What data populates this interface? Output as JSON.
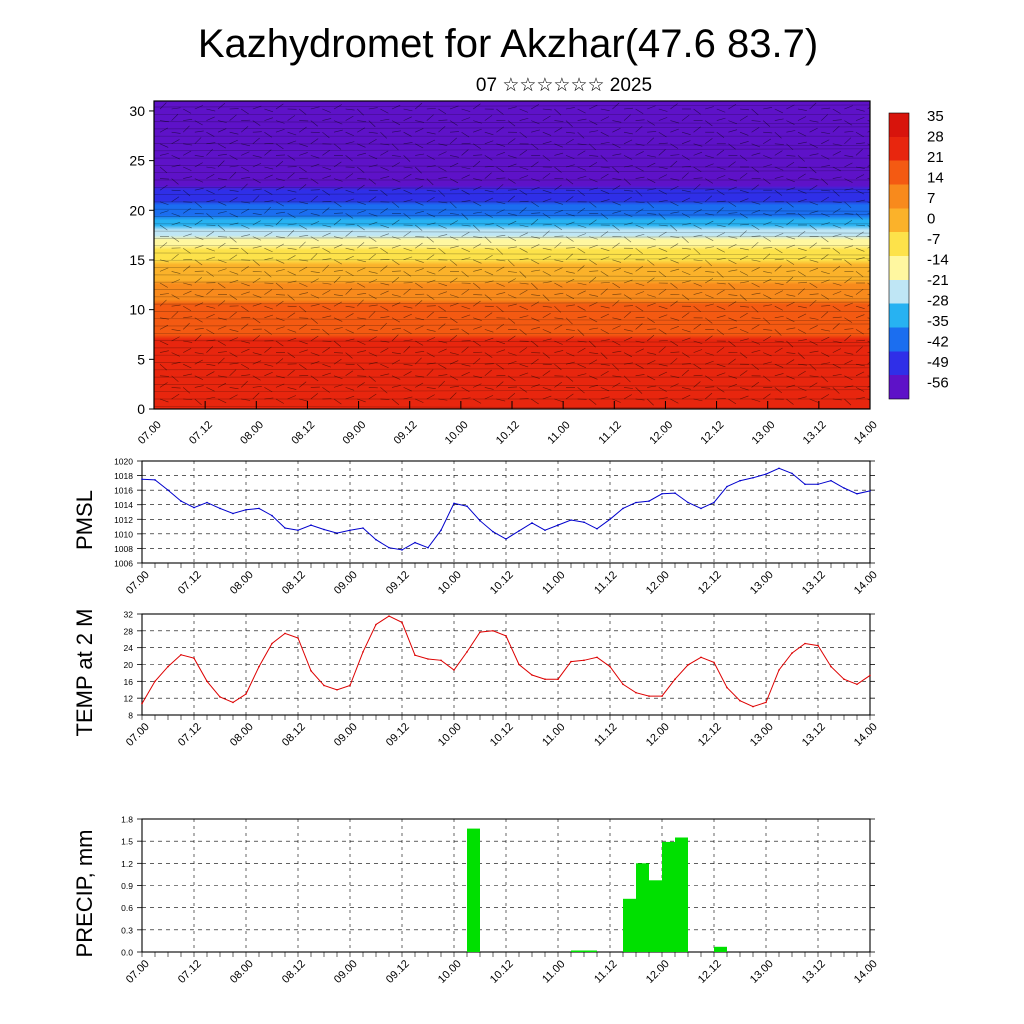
{
  "title": "Kazhydromet for Akzhar(47.6 83.7)",
  "subtitle": "07 ☆☆☆☆☆☆ 2025",
  "time_ticks": [
    "07.00",
    "07.12",
    "08.00",
    "08.12",
    "09.00",
    "09.12",
    "10.00",
    "10.12",
    "11.00",
    "11.12",
    "12.00",
    "12.12",
    "13.00",
    "13.12",
    "14.00"
  ],
  "chart_data": [
    {
      "type": "heatmap",
      "title": "",
      "ylim": [
        0,
        31
      ],
      "y_ticks": [
        "0",
        "5",
        "10",
        "15",
        "20",
        "25",
        "30"
      ],
      "colorbar_labels": [
        "35",
        "28",
        "21",
        "14",
        "7",
        "0",
        "-7",
        "-14",
        "-21",
        "-28",
        "-35",
        "-42",
        "-49",
        "-56"
      ],
      "color_scale": [
        "#5e12c8",
        "#2f2fe8",
        "#1b6ef0",
        "#27b2f2",
        "#bfe6f5",
        "#fff7a0",
        "#fde24a",
        "#fbb22a",
        "#f88a1c",
        "#f45a12",
        "#e8260e",
        "#d8140c"
      ],
      "temperature_profile": [
        {
          "height": 0,
          "value": 26
        },
        {
          "height": 5,
          "value": 24
        },
        {
          "height": 10,
          "value": 14
        },
        {
          "height": 15,
          "value": -4
        },
        {
          "height": 18,
          "value": -26
        },
        {
          "height": 22,
          "value": -50
        },
        {
          "height": 25,
          "value": -58
        },
        {
          "height": 30,
          "value": -54
        }
      ]
    },
    {
      "type": "line",
      "ylabel": "PMSL",
      "ylim": [
        1006,
        1020
      ],
      "y_ticks": [
        "1020",
        "1018",
        "1016",
        "1014",
        "1012",
        "1010",
        "1008",
        "1006"
      ],
      "color": "#0000cc",
      "x": [
        0,
        1,
        2,
        3,
        4,
        5,
        6,
        7,
        8,
        9,
        10,
        11,
        12,
        13,
        14,
        15,
        16,
        17,
        18,
        19,
        20,
        21,
        22,
        23,
        24,
        25,
        26,
        27,
        28,
        29,
        30,
        31,
        32,
        33,
        34,
        35,
        36,
        37,
        38,
        39,
        40,
        41,
        42,
        43,
        44,
        45,
        46,
        47,
        48,
        49,
        50,
        51,
        52,
        53,
        54,
        55,
        56
      ],
      "values": [
        1017.5,
        1017.4,
        1016,
        1014.5,
        1013.6,
        1014.3,
        1013.5,
        1012.8,
        1013.3,
        1013.5,
        1012.5,
        1010.8,
        1010.5,
        1011.2,
        1010.6,
        1010.1,
        1010.5,
        1010.8,
        1009.2,
        1008.1,
        1007.8,
        1008.8,
        1008.1,
        1010.5,
        1014.2,
        1013.8,
        1011.8,
        1010.3,
        1009.3,
        1010.4,
        1011.5,
        1010.5,
        1011.2,
        1011.9,
        1011.6,
        1010.7,
        1012.0,
        1013.5,
        1014.3,
        1014.5,
        1015.5,
        1015.6,
        1014.3,
        1013.5,
        1014.3,
        1016.5,
        1017.3,
        1017.7,
        1018.2,
        1019,
        1018.3,
        1016.8,
        1016.8,
        1017.3,
        1016.3,
        1015.5,
        1015.9
      ]
    },
    {
      "type": "line",
      "ylabel": "TEMP at 2 M",
      "ylim": [
        8,
        32
      ],
      "y_ticks": [
        "32",
        "28",
        "24",
        "20",
        "16",
        "12",
        "8"
      ],
      "color": "#dd0000",
      "x": [
        0,
        1,
        2,
        3,
        4,
        5,
        6,
        7,
        8,
        9,
        10,
        11,
        12,
        13,
        14,
        15,
        16,
        17,
        18,
        19,
        20,
        21,
        22,
        23,
        24,
        25,
        26,
        27,
        28,
        29,
        30,
        31,
        32,
        33,
        34,
        35,
        36,
        37,
        38,
        39,
        40,
        41,
        42,
        43,
        44,
        45,
        46,
        47,
        48,
        49,
        50,
        51,
        52,
        53,
        54,
        55,
        56
      ],
      "values": [
        10.7,
        16,
        19.5,
        22.3,
        21.5,
        16,
        12.3,
        11,
        13,
        19.5,
        25,
        27.4,
        26.3,
        18.5,
        15,
        14,
        15,
        23,
        29.5,
        31.5,
        30,
        22.2,
        21.3,
        21,
        18.7,
        23,
        27.7,
        28,
        26.8,
        20,
        17.5,
        16.5,
        16.5,
        20.7,
        21,
        21.7,
        19.5,
        15.3,
        13.3,
        12.5,
        12.5,
        16.5,
        19.9,
        21.7,
        20.5,
        14.5,
        11.4,
        10,
        11,
        18.7,
        22.7,
        25,
        24.5,
        19.5,
        16.5,
        15.3,
        17.4
      ]
    },
    {
      "type": "bar",
      "ylabel": "PRECIP, mm",
      "ylim": [
        0,
        1.8
      ],
      "y_ticks": [
        "1.8",
        "1.5",
        "1.2",
        "0.9",
        "0.6",
        "0.3",
        "0.0"
      ],
      "color": "#00e000",
      "x": [
        25,
        33,
        34,
        37,
        38,
        39,
        40,
        41,
        44
      ],
      "values": [
        1.67,
        0.02,
        0.02,
        0.72,
        1.2,
        0.97,
        1.49,
        1.55,
        0.07
      ]
    }
  ]
}
